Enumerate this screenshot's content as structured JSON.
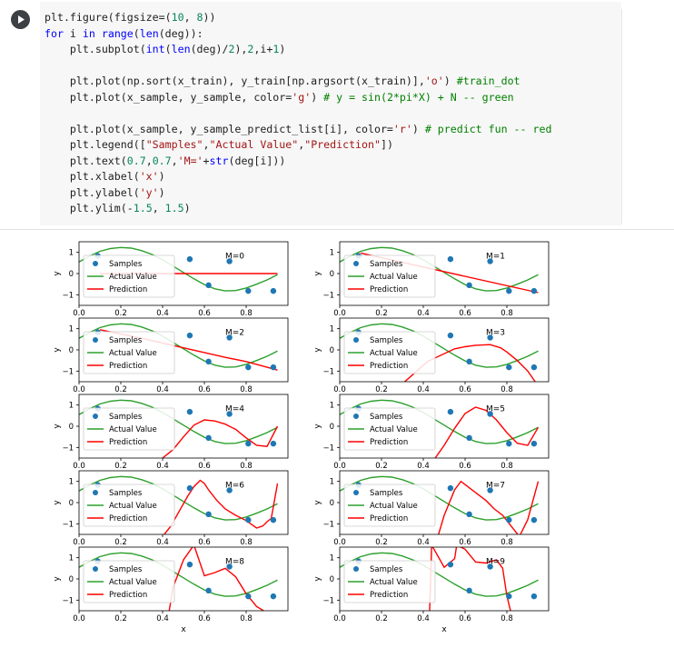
{
  "code_cell": {
    "lines": [
      [
        {
          "t": "plt.figure(figsize=(",
          "c": "p"
        },
        {
          "t": "10",
          "c": "num"
        },
        {
          "t": ", ",
          "c": "p"
        },
        {
          "t": "8",
          "c": "num"
        },
        {
          "t": "))",
          "c": "p"
        }
      ],
      [
        {
          "t": "for",
          "c": "kw"
        },
        {
          "t": " i ",
          "c": "p"
        },
        {
          "t": "in",
          "c": "kw"
        },
        {
          "t": " ",
          "c": "p"
        },
        {
          "t": "range",
          "c": "kw"
        },
        {
          "t": "(",
          "c": "p"
        },
        {
          "t": "len",
          "c": "kw"
        },
        {
          "t": "(deg)):",
          "c": "p"
        }
      ],
      [
        {
          "t": "    plt.subplot(",
          "c": "p"
        },
        {
          "t": "int",
          "c": "kw"
        },
        {
          "t": "(",
          "c": "p"
        },
        {
          "t": "len",
          "c": "kw"
        },
        {
          "t": "(deg)/",
          "c": "p"
        },
        {
          "t": "2",
          "c": "num"
        },
        {
          "t": "),",
          "c": "p"
        },
        {
          "t": "2",
          "c": "num"
        },
        {
          "t": ",i+",
          "c": "p"
        },
        {
          "t": "1",
          "c": "num"
        },
        {
          "t": ")",
          "c": "p"
        }
      ],
      [],
      [
        {
          "t": "    plt.plot(np.sort(x_train), y_train[np.argsort(x_train)],",
          "c": "p"
        },
        {
          "t": "'o'",
          "c": "str"
        },
        {
          "t": ") ",
          "c": "p"
        },
        {
          "t": "#train_dot",
          "c": "cm"
        }
      ],
      [
        {
          "t": "    plt.plot(x_sample, y_sample, color=",
          "c": "p"
        },
        {
          "t": "'g'",
          "c": "str"
        },
        {
          "t": ") ",
          "c": "p"
        },
        {
          "t": "# y = sin(2*pi*X) + N -- green",
          "c": "cm"
        }
      ],
      [],
      [
        {
          "t": "    plt.plot(x_sample, y_sample_predict_list[i], color=",
          "c": "p"
        },
        {
          "t": "'r'",
          "c": "str"
        },
        {
          "t": ") ",
          "c": "p"
        },
        {
          "t": "# predict fun -- red",
          "c": "cm"
        }
      ],
      [
        {
          "t": "    plt.legend([",
          "c": "p"
        },
        {
          "t": "\"Samples\"",
          "c": "str"
        },
        {
          "t": ",",
          "c": "p"
        },
        {
          "t": "\"Actual Value\"",
          "c": "str"
        },
        {
          "t": ",",
          "c": "p"
        },
        {
          "t": "\"Prediction\"",
          "c": "str"
        },
        {
          "t": "])",
          "c": "p"
        }
      ],
      [
        {
          "t": "    plt.text(",
          "c": "p"
        },
        {
          "t": "0.7",
          "c": "num"
        },
        {
          "t": ",",
          "c": "p"
        },
        {
          "t": "0.7",
          "c": "num"
        },
        {
          "t": ",",
          "c": "p"
        },
        {
          "t": "'M='",
          "c": "str"
        },
        {
          "t": "+",
          "c": "p"
        },
        {
          "t": "str",
          "c": "kw"
        },
        {
          "t": "(deg[i]))",
          "c": "p"
        }
      ],
      [
        {
          "t": "    plt.xlabel(",
          "c": "p"
        },
        {
          "t": "'x'",
          "c": "str"
        },
        {
          "t": ")",
          "c": "p"
        }
      ],
      [
        {
          "t": "    plt.ylabel(",
          "c": "p"
        },
        {
          "t": "'y'",
          "c": "str"
        },
        {
          "t": ")",
          "c": "p"
        }
      ],
      [
        {
          "t": "    plt.ylim(-",
          "c": "p"
        },
        {
          "t": "1.5",
          "c": "num"
        },
        {
          "t": ", ",
          "c": "p"
        },
        {
          "t": "1.5",
          "c": "num"
        },
        {
          "t": ")",
          "c": "p"
        }
      ]
    ]
  },
  "colors": {
    "samples": "#1f77b4",
    "actual": "#2ca02c",
    "prediction": "#ff0000",
    "code_bg": "#f7f7f7"
  },
  "chart_data": {
    "type": "line",
    "layout": "5x2 grid of subplots",
    "shared": {
      "xlim": [
        0.0,
        1.0
      ],
      "ylim": [
        -1.5,
        1.5
      ],
      "yticks": [
        "1",
        "0",
        "-1"
      ],
      "xticks": [
        "0.0",
        "0.2",
        "0.4",
        "0.6",
        "0.8"
      ],
      "xlabel": "x",
      "ylabel": "y",
      "legend": [
        "Samples",
        "Actual Value",
        "Prediction"
      ],
      "legend_placement": "lower-left",
      "samples": {
        "x": [
          0.09,
          0.53,
          0.72,
          0.62,
          0.81,
          0.93
        ],
        "y": [
          0.83,
          0.68,
          0.58,
          -0.55,
          -0.82,
          -0.82
        ]
      },
      "actual": {
        "x": [
          0.0,
          0.05,
          0.1,
          0.15,
          0.2,
          0.25,
          0.3,
          0.35,
          0.4,
          0.45,
          0.5,
          0.55,
          0.6,
          0.65,
          0.7,
          0.75,
          0.8,
          0.85,
          0.9,
          0.95
        ],
        "y": [
          0.55,
          0.82,
          1.05,
          1.18,
          1.23,
          1.2,
          1.08,
          0.9,
          0.65,
          0.35,
          0.05,
          -0.25,
          -0.52,
          -0.72,
          -0.82,
          -0.8,
          -0.68,
          -0.5,
          -0.3,
          -0.05
        ]
      }
    },
    "panels": [
      {
        "label": "M=0",
        "prediction": {
          "x": [
            0.1,
            0.95
          ],
          "y": [
            0.0,
            0.0
          ]
        }
      },
      {
        "label": "M=1",
        "prediction": {
          "x": [
            0.1,
            0.95
          ],
          "y": [
            0.97,
            -0.9
          ]
        }
      },
      {
        "label": "M=2",
        "prediction": {
          "x": [
            0.1,
            0.3,
            0.5,
            0.7,
            0.8,
            0.95
          ],
          "y": [
            0.95,
            0.55,
            0.1,
            -0.35,
            -0.55,
            -0.95
          ]
        }
      },
      {
        "label": "M=3",
        "prediction": {
          "x": [
            0.3,
            0.42,
            0.55,
            0.6,
            0.65,
            0.72,
            0.77,
            0.8,
            0.85,
            0.9,
            0.95
          ],
          "y": [
            -1.6,
            -0.55,
            0.05,
            0.15,
            0.22,
            0.25,
            0.1,
            -0.1,
            -0.5,
            -1.0,
            -1.7
          ]
        }
      },
      {
        "label": "M=4",
        "prediction": {
          "x": [
            0.4,
            0.45,
            0.5,
            0.55,
            0.6,
            0.65,
            0.7,
            0.75,
            0.8,
            0.85,
            0.9,
            0.95
          ],
          "y": [
            -1.5,
            -1.1,
            -0.5,
            0.05,
            0.3,
            0.25,
            0.1,
            -0.15,
            -0.55,
            -0.9,
            -0.95,
            0.0
          ]
        }
      },
      {
        "label": "M=5",
        "prediction": {
          "x": [
            0.45,
            0.5,
            0.55,
            0.6,
            0.65,
            0.7,
            0.75,
            0.8,
            0.85,
            0.9,
            0.95
          ],
          "y": [
            -1.6,
            -0.9,
            -0.1,
            0.6,
            0.9,
            0.75,
            0.3,
            -0.3,
            -0.8,
            -0.9,
            -0.05
          ]
        }
      },
      {
        "label": "M=6",
        "prediction": {
          "x": [
            0.4,
            0.44,
            0.48,
            0.52,
            0.55,
            0.58,
            0.6,
            0.62,
            0.66,
            0.7,
            0.75,
            0.8,
            0.85,
            0.88,
            0.9,
            0.92,
            0.95
          ],
          "y": [
            -1.6,
            -1.1,
            -0.4,
            0.3,
            0.75,
            1.05,
            0.9,
            0.6,
            0.1,
            -0.3,
            -0.6,
            -0.85,
            -1.2,
            -1.1,
            -0.9,
            -0.75,
            0.9
          ]
        }
      },
      {
        "label": "M=7",
        "prediction": {
          "x": [
            0.47,
            0.5,
            0.55,
            0.58,
            0.62,
            0.66,
            0.7,
            0.74,
            0.78,
            0.82,
            0.86,
            0.9,
            0.95
          ],
          "y": [
            -1.6,
            -0.6,
            0.6,
            1.0,
            0.7,
            0.4,
            0.1,
            -0.3,
            -0.6,
            -1.1,
            -1.6,
            -0.8,
            1.0
          ]
        }
      },
      {
        "label": "M=8",
        "prediction": {
          "x": [
            0.43,
            0.45,
            0.5,
            0.55,
            0.6,
            0.65,
            0.7,
            0.75,
            0.8,
            0.85,
            0.9
          ],
          "y": [
            -1.6,
            -0.4,
            0.9,
            1.6,
            0.15,
            0.3,
            0.5,
            0.1,
            -0.7,
            -1.3,
            -1.6
          ]
        }
      },
      {
        "label": "M=9",
        "prediction": {
          "x": [
            0.43,
            0.435,
            0.44,
            0.5,
            0.55,
            0.56,
            0.6,
            0.65,
            0.7,
            0.75,
            0.78,
            0.8,
            0.82
          ],
          "y": [
            -1.6,
            0.0,
            1.6,
            0.55,
            0.95,
            1.6,
            1.4,
            0.8,
            0.75,
            0.9,
            0.5,
            -0.8,
            -1.6
          ]
        }
      }
    ]
  }
}
